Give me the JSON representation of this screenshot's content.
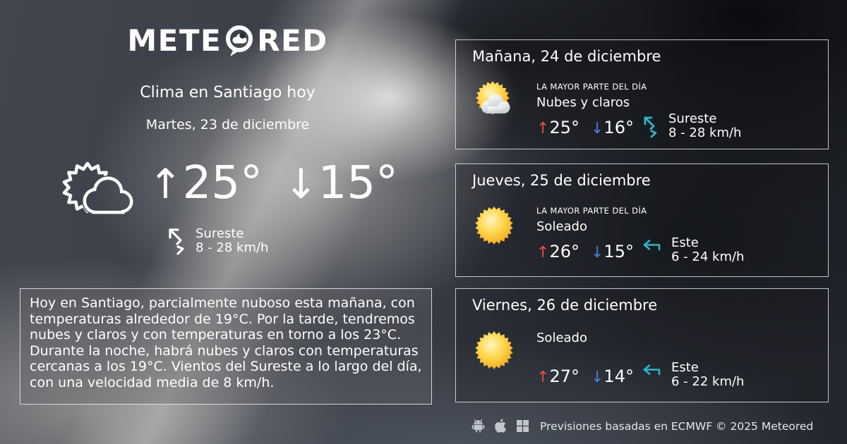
{
  "logo": {
    "text_left": "METE",
    "text_right": "RED",
    "name": "Meteored"
  },
  "header": {
    "title": "Clima en Santiago hoy",
    "date": "Martes, 23 de diciembre"
  },
  "current": {
    "condition_icon": "sun-behind-cloud-outline",
    "temp_max": "25°",
    "temp_min": "15°",
    "wind_direction": "Sureste",
    "wind_speed": "8 - 28 km/h"
  },
  "summary": "Hoy en Santiago, parcialmente nuboso esta mañana, con temperaturas alrededor de 19°C. Por la tarde, tendremos nubes y claros y con temperaturas en torno a los 23°C. Durante la noche, habrá nubes y claros  con temperaturas cercanas a los 19°C. Vientos del Sureste a lo largo del día, con una velocidad media de 8 km/h.",
  "forecast": [
    {
      "day": "Mañana, 24 de diciembre",
      "period_label": "LA MAYOR PARTE DEL DÍA",
      "condition": "Nubes y claros",
      "condition_icon": "sun-with-cloud",
      "temp_max": "25°",
      "temp_min": "16°",
      "wind_direction": "Sureste",
      "wind_speed": "8 - 28 km/h",
      "wind_icon": "arrow-northwest-zigzag"
    },
    {
      "day": "Jueves, 25 de diciembre",
      "period_label": "LA MAYOR PARTE DEL DÍA",
      "condition": "Soleado",
      "condition_icon": "sun",
      "temp_max": "26°",
      "temp_min": "15°",
      "wind_direction": "Este",
      "wind_speed": "6 - 24 km/h",
      "wind_icon": "arrow-west-hook"
    },
    {
      "day": "Viernes, 26 de diciembre",
      "condition": "Soleado",
      "condition_icon": "sun",
      "temp_max": "27°",
      "temp_min": "14°",
      "wind_direction": "Este",
      "wind_speed": "6 - 22 km/h",
      "wind_icon": "arrow-west-hook"
    }
  ],
  "icons": {
    "up_arrow": "↑",
    "down_arrow": "↓"
  },
  "footer": {
    "platforms": [
      "android",
      "apple",
      "windows"
    ],
    "attribution": "Previsiones basadas en ECMWF © 2025 Meteored"
  },
  "colors": {
    "temp_up_red": "#e4504b",
    "temp_down_blue": "#4a7fdd",
    "wind_teal": "#2cb6c9",
    "sun_yellow": "#fdc93f"
  }
}
